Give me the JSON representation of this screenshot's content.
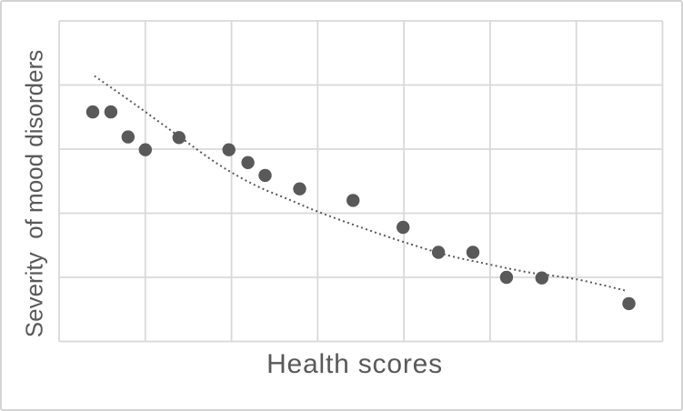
{
  "chart_data": {
    "type": "scatter",
    "title": "",
    "xlabel": "Health scores",
    "ylabel": "Severity  of mood disorders",
    "x_tick_labels": [],
    "y_tick_labels": [],
    "xlim": [
      0,
      7
    ],
    "ylim": [
      0,
      5
    ],
    "grid": "on",
    "legend": "none",
    "axes_note": "no numeric tick labels visible; point coordinates are expressed in gridline units (7 columns x 5 rows)",
    "series": [
      {
        "name": "scatter-points",
        "marker": "circle",
        "marker_radius_px": 7.2,
        "color": "#595959",
        "points": [
          [
            0.39,
            3.58
          ],
          [
            0.6,
            3.58
          ],
          [
            0.8,
            3.19
          ],
          [
            1.0,
            2.99
          ],
          [
            1.39,
            3.18
          ],
          [
            1.97,
            2.99
          ],
          [
            2.19,
            2.79
          ],
          [
            2.39,
            2.59
          ],
          [
            2.79,
            2.38
          ],
          [
            3.41,
            2.2
          ],
          [
            3.99,
            1.78
          ],
          [
            4.4,
            1.39
          ],
          [
            4.8,
            1.39
          ],
          [
            5.19,
            1.0
          ],
          [
            5.6,
            0.99
          ],
          [
            6.61,
            0.59
          ]
        ]
      }
    ],
    "trendline": {
      "style": "dotted",
      "shape": "decreasing concave-up curve",
      "color": "#595959",
      "points": [
        [
          0.41,
          4.14
        ],
        [
          0.9,
          3.68
        ],
        [
          1.39,
          3.2
        ],
        [
          1.85,
          2.76
        ],
        [
          2.27,
          2.44
        ],
        [
          2.69,
          2.2
        ],
        [
          3.01,
          2.02
        ],
        [
          3.54,
          1.76
        ],
        [
          4.0,
          1.55
        ],
        [
          4.49,
          1.35
        ],
        [
          4.96,
          1.21
        ],
        [
          5.44,
          1.08
        ],
        [
          6.0,
          0.97
        ],
        [
          6.58,
          0.79
        ]
      ]
    },
    "colors": {
      "marker": "#595959",
      "trendline": "#595959",
      "gridline": "#d9d9d9",
      "axis_title_text": "#595959",
      "frame_border": "#d4d4d4",
      "background": "#ffffff"
    }
  }
}
